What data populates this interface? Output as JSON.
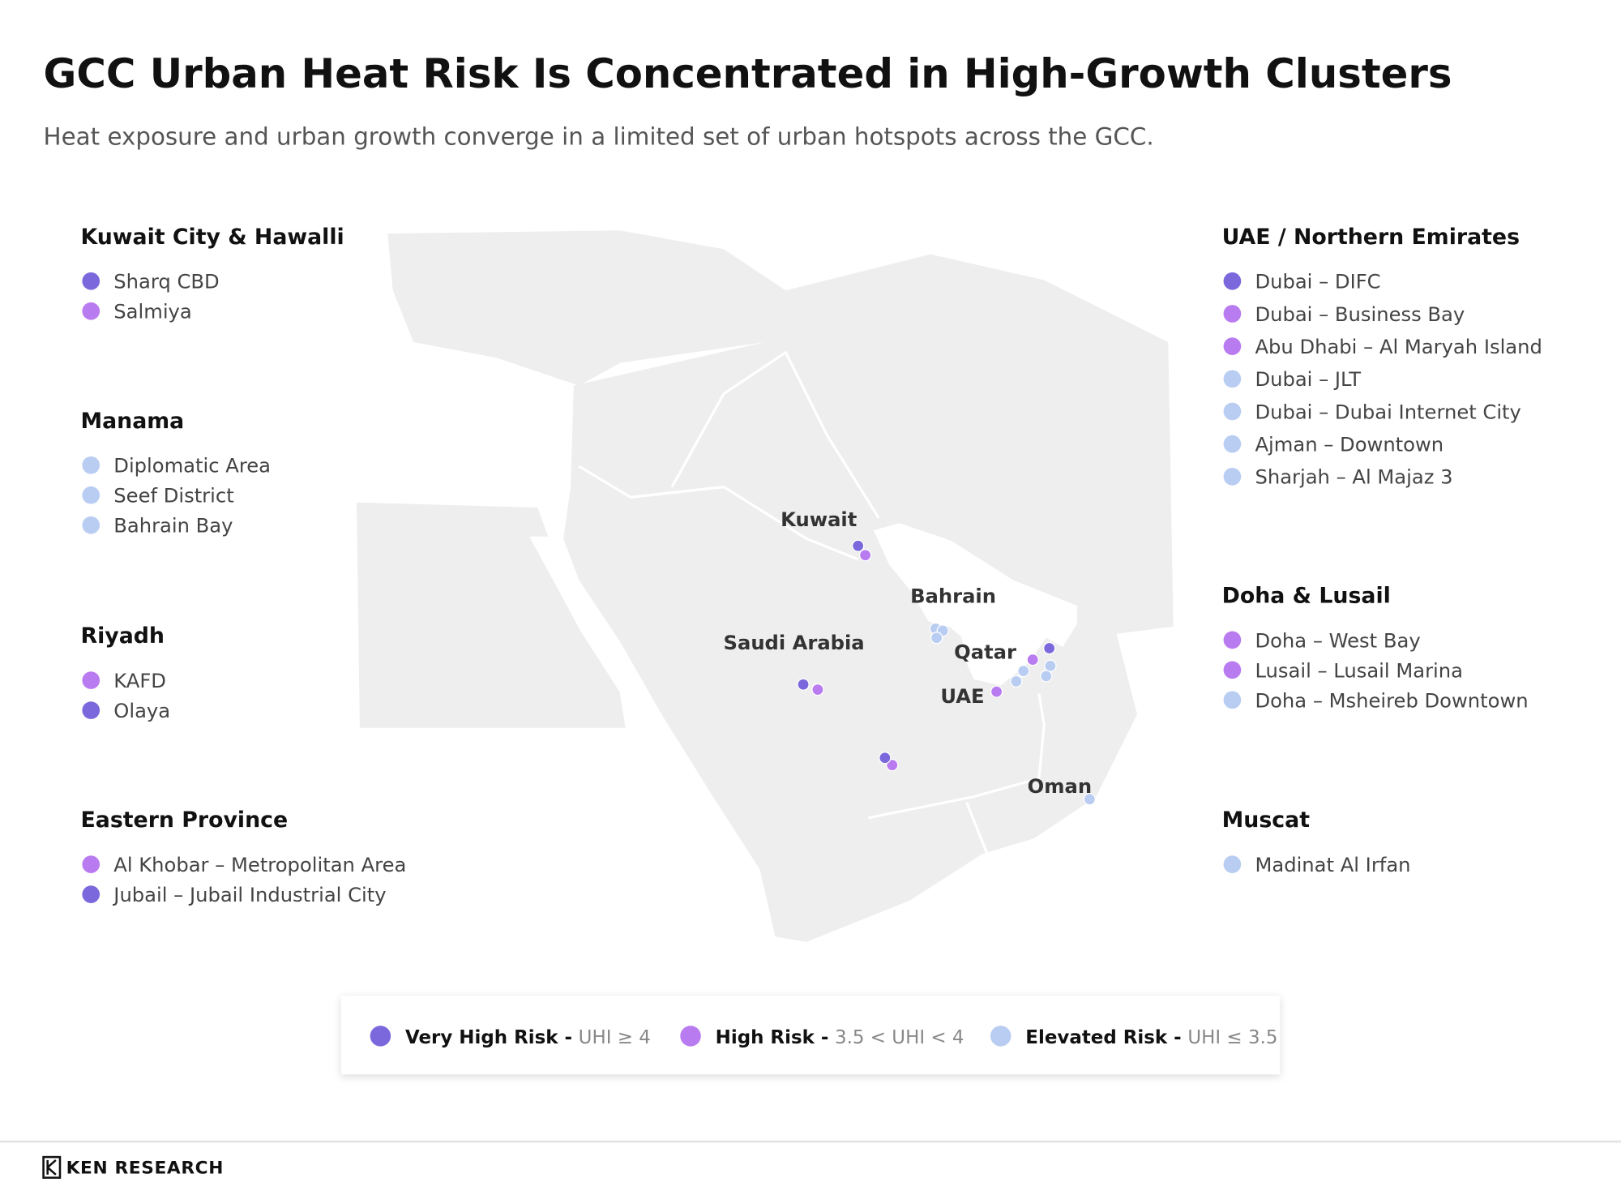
{
  "title": "GCC Urban Heat Risk Is Concentrated in High-Growth Clusters",
  "subtitle": "Heat exposure and urban growth converge in a limited set of urban hotspots across the GCC.",
  "left_groups": [
    {
      "name": "Kuwait City & Hawalli",
      "items": [
        {
          "label": "Sharq CBD",
          "color": "#7b68dc"
        },
        {
          "label": "Salmiya",
          "color": "#b97bf0"
        }
      ]
    },
    {
      "name": "Manama",
      "items": [
        {
          "label": "Diplomatic Area",
          "color": "#b9cdf2"
        },
        {
          "label": "Seef District",
          "color": "#b9cdf2"
        },
        {
          "label": "Bahrain Bay",
          "color": "#b9cdf2"
        }
      ]
    },
    {
      "name": "Riyadh",
      "items": [
        {
          "label": "KAFD",
          "color": "#b97bf0"
        },
        {
          "label": "Olaya",
          "color": "#7b68dc"
        }
      ]
    },
    {
      "name": "Eastern Province",
      "items": [
        {
          "label": "Al Khobar – Metropolitan Area",
          "color": "#b97bf0"
        },
        {
          "label": "Jubail – Jubail Industrial City",
          "color": "#7b68dc"
        }
      ]
    }
  ],
  "right_groups": [
    {
      "name": "UAE / Northern Emirates",
      "items": [
        {
          "label": "Dubai – DIFC",
          "color": "#7b68dc"
        },
        {
          "label": "Dubai – Business Bay",
          "color": "#b97bf0"
        },
        {
          "label": "Abu Dhabi – Al Maryah Island",
          "color": "#b97bf0"
        },
        {
          "label": "Dubai – JLT",
          "color": "#b9cdf2"
        },
        {
          "label": "Dubai – Dubai Internet City",
          "color": "#b9cdf2"
        },
        {
          "label": "Ajman – Downtown",
          "color": "#b9cdf2"
        },
        {
          "label": "Sharjah – Al Majaz 3",
          "color": "#b9cdf2"
        }
      ]
    },
    {
      "name": "Doha & Lusail",
      "items": [
        {
          "label": "Doha – West Bay",
          "color": "#b97bf0"
        },
        {
          "label": "Lusail – Lusail Marina",
          "color": "#b97bf0"
        },
        {
          "label": "Doha – Msheireb Downtown",
          "color": "#b9cdf2"
        }
      ]
    },
    {
      "name": "Muscat",
      "items": [
        {
          "label": "Madinat Al Irfan",
          "color": "#b9cdf2"
        }
      ]
    }
  ],
  "map_labels": [
    "Kuwait",
    "Bahrain",
    "Qatar",
    "Saudi Arabia",
    "UAE",
    "Oman"
  ],
  "legend": [
    {
      "name": "Very High Risk -",
      "condition": "UHI ≥ 4",
      "color": "#7b68dc"
    },
    {
      "name": "High Risk -",
      "condition": "3.5 < UHI < 4",
      "color": "#b97bf0"
    },
    {
      "name": "Elevated Risk -",
      "condition": "UHI ≤ 3.5",
      "color": "#b9cdf2"
    }
  ],
  "footer": {
    "brand": "KEN RESEARCH"
  }
}
